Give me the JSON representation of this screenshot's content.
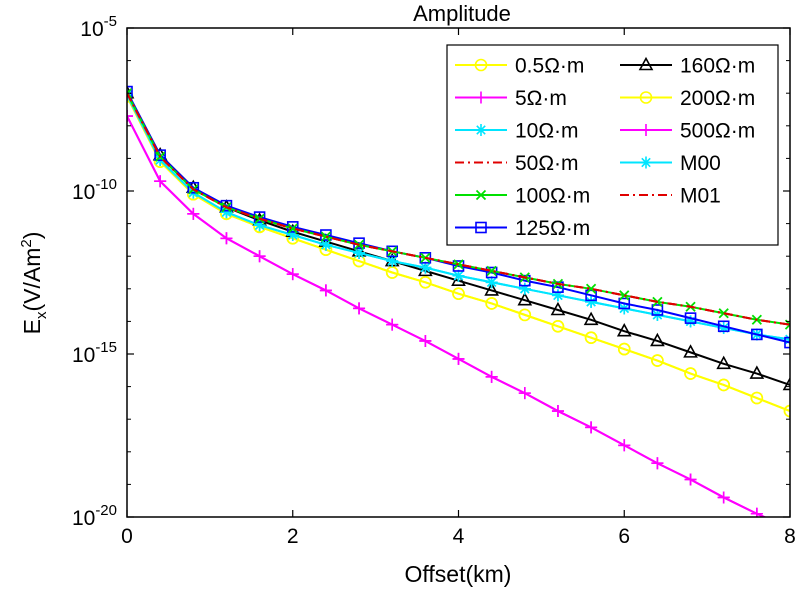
{
  "chart_data": {
    "type": "line",
    "title": "Amplitude",
    "xlabel": "Offset(km)",
    "ylabel_main": "E",
    "ylabel_sub": "x",
    "ylabel_rest": "(V/Am",
    "ylabel_sup": "2",
    "ylabel_close": ")",
    "xlim": [
      0,
      8
    ],
    "ylim_exp": [
      -20,
      -5
    ],
    "y_scale": "log",
    "x_ticks": [
      0,
      2,
      4,
      6,
      8
    ],
    "x_tick_labels": [
      "0",
      "2",
      "4",
      "6",
      "8"
    ],
    "y_ticks": [
      {
        "exp": -5,
        "base": "10",
        "power": "-5"
      },
      {
        "exp": -10,
        "base": "10",
        "power": "-10"
      },
      {
        "exp": -15,
        "base": "10",
        "power": "-15"
      },
      {
        "exp": -20,
        "base": "10",
        "power": "-20"
      }
    ],
    "legend_position": "top-right",
    "x": [
      0,
      0.4,
      0.8,
      1.2,
      1.6,
      2.0,
      2.4,
      2.8,
      3.2,
      3.6,
      4.0,
      4.4,
      4.8,
      5.2,
      5.6,
      6.0,
      6.4,
      6.8,
      7.2,
      7.6,
      8.0
    ],
    "series": [
      {
        "name": "0.5Ω·m",
        "color": "#ffff00",
        "marker": "circle",
        "dash": "solid",
        "log10_values": [
          -7.1,
          -9.1,
          -10.1,
          -10.7,
          -11.1,
          -11.45,
          -11.8,
          -12.15,
          -12.5,
          -12.8,
          -13.15,
          -13.45,
          -13.8,
          -14.15,
          -14.5,
          -14.85,
          -15.2,
          -15.6,
          -15.95,
          -16.35,
          -16.75
        ]
      },
      {
        "name": "5Ω·m",
        "color": "#ff00ff",
        "marker": "plus",
        "dash": "solid",
        "log10_values": [
          -7.7,
          -9.7,
          -10.7,
          -11.45,
          -12.0,
          -12.55,
          -13.05,
          -13.6,
          -14.1,
          -14.6,
          -15.15,
          -15.7,
          -16.2,
          -16.75,
          -17.25,
          -17.8,
          -18.35,
          -18.85,
          -19.4,
          -19.9,
          -20.35
        ]
      },
      {
        "name": "10Ω·m",
        "color": "#00e5ff",
        "marker": "asterisk",
        "dash": "solid",
        "log10_values": [
          -7.05,
          -9.05,
          -10.05,
          -10.65,
          -11.05,
          -11.35,
          -11.65,
          -11.9,
          -12.15,
          -12.35,
          -12.6,
          -12.8,
          -13.0,
          -13.2,
          -13.4,
          -13.6,
          -13.8,
          -14.0,
          -14.2,
          -14.4,
          -14.55
        ]
      },
      {
        "name": "50Ω·m",
        "color": "#e00000",
        "marker": "none",
        "dash": "dashdot",
        "log10_values": [
          -7.0,
          -8.95,
          -9.95,
          -10.5,
          -10.85,
          -11.15,
          -11.4,
          -11.65,
          -11.85,
          -12.05,
          -12.25,
          -12.45,
          -12.65,
          -12.85,
          -13.0,
          -13.2,
          -13.4,
          -13.55,
          -13.75,
          -13.95,
          -14.1
        ]
      },
      {
        "name": "100Ω·m",
        "color": "#00e000",
        "marker": "x",
        "dash": "solid",
        "log10_values": [
          -7.0,
          -8.95,
          -9.95,
          -10.5,
          -10.85,
          -11.15,
          -11.4,
          -11.65,
          -11.85,
          -12.05,
          -12.25,
          -12.45,
          -12.65,
          -12.85,
          -13.0,
          -13.2,
          -13.4,
          -13.55,
          -13.75,
          -13.95,
          -14.1
        ]
      },
      {
        "name": "125Ω·m",
        "color": "#0000ff",
        "marker": "square",
        "dash": "solid",
        "log10_values": [
          -6.95,
          -8.9,
          -9.9,
          -10.45,
          -10.8,
          -11.1,
          -11.35,
          -11.6,
          -11.85,
          -12.05,
          -12.3,
          -12.5,
          -12.75,
          -12.95,
          -13.2,
          -13.45,
          -13.65,
          -13.9,
          -14.15,
          -14.4,
          -14.65
        ]
      },
      {
        "name": "160Ω·m",
        "color": "#000000",
        "marker": "triangle",
        "dash": "solid",
        "log10_values": [
          -7.0,
          -8.9,
          -9.9,
          -10.5,
          -10.9,
          -11.25,
          -11.55,
          -11.85,
          -12.15,
          -12.45,
          -12.75,
          -13.05,
          -13.35,
          -13.65,
          -13.95,
          -14.3,
          -14.6,
          -14.95,
          -15.3,
          -15.6,
          -15.95
        ]
      },
      {
        "name": "200Ω·m",
        "color": "#ffff00",
        "marker": "circle",
        "dash": "solid",
        "log10_values": [
          -7.1,
          -9.1,
          -10.1,
          -10.7,
          -11.1,
          -11.45,
          -11.8,
          -12.15,
          -12.5,
          -12.8,
          -13.15,
          -13.45,
          -13.8,
          -14.15,
          -14.5,
          -14.85,
          -15.2,
          -15.6,
          -15.95,
          -16.35,
          -16.75
        ]
      },
      {
        "name": "500Ω·m",
        "color": "#ff00ff",
        "marker": "plus",
        "dash": "solid",
        "log10_values": [
          -7.7,
          -9.7,
          -10.7,
          -11.45,
          -12.0,
          -12.55,
          -13.05,
          -13.6,
          -14.1,
          -14.6,
          -15.15,
          -15.7,
          -16.2,
          -16.75,
          -17.25,
          -17.8,
          -18.35,
          -18.85,
          -19.4,
          -19.9,
          -20.35
        ]
      },
      {
        "name": "M00",
        "color": "#00e5ff",
        "marker": "asterisk",
        "dash": "solid",
        "log10_values": [
          -7.05,
          -9.05,
          -10.05,
          -10.65,
          -11.05,
          -11.35,
          -11.65,
          -11.9,
          -12.15,
          -12.35,
          -12.6,
          -12.8,
          -13.0,
          -13.2,
          -13.4,
          -13.6,
          -13.8,
          -14.0,
          -14.2,
          -14.4,
          -14.55
        ]
      },
      {
        "name": "M01",
        "color": "#e00000",
        "marker": "none",
        "dash": "dashdot",
        "log10_values": [
          -7.0,
          -8.95,
          -9.95,
          -10.5,
          -10.85,
          -11.15,
          -11.4,
          -11.65,
          -11.85,
          -12.05,
          -12.25,
          -12.45,
          -12.65,
          -12.85,
          -13.0,
          -13.2,
          -13.4,
          -13.55,
          -13.75,
          -13.95,
          -14.1
        ]
      }
    ],
    "legend_order": [
      0,
      6,
      1,
      7,
      2,
      8,
      3,
      9,
      4,
      10,
      5
    ]
  }
}
